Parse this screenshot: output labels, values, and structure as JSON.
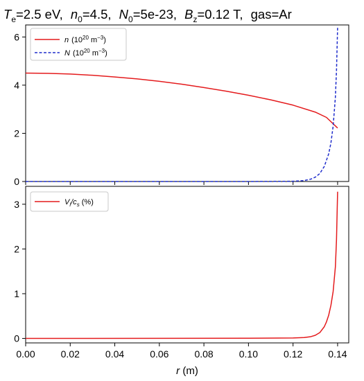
{
  "chart_data": [
    {
      "type": "line",
      "title_parts": {
        "te_sym": "T",
        "te_sub": "e",
        "te_val": "=2.5 eV,",
        "n0_sym": "n",
        "n0_sub": "0",
        "n0_val": "=4.5,",
        "N0_sym": "N",
        "N0_sub": "0",
        "N0_val": "=5e-23,",
        "bz_sym": "B",
        "bz_sub": "z",
        "bz_val": "=0.12 T,",
        "gas": "gas=Ar"
      },
      "xlabel": "",
      "ylabel": "",
      "xlim": [
        0.0,
        0.145
      ],
      "ylim": [
        0,
        6.5
      ],
      "yticks": [
        "0",
        "2",
        "4",
        "6"
      ],
      "yticks_values": [
        0,
        2,
        4,
        6
      ],
      "legend": "top-left",
      "series": [
        {
          "name_sym": "n",
          "name_unit": "(10",
          "name_exp": "20",
          "name_tail": " m",
          "name_tail_exp": "−3",
          "name_close": ")",
          "color": "#e41a1c",
          "style": "solid",
          "x": [
            0.0,
            0.01,
            0.02,
            0.03,
            0.04,
            0.05,
            0.06,
            0.07,
            0.08,
            0.09,
            0.1,
            0.11,
            0.12,
            0.13,
            0.135,
            0.14
          ],
          "y": [
            4.5,
            4.49,
            4.46,
            4.41,
            4.34,
            4.26,
            4.16,
            4.04,
            3.9,
            3.75,
            3.58,
            3.39,
            3.17,
            2.88,
            2.66,
            2.22
          ]
        },
        {
          "name_sym": "N",
          "name_unit": "(10",
          "name_exp": "20",
          "name_tail": " m",
          "name_tail_exp": "−3",
          "name_close": ")",
          "color": "#1f2dcc",
          "style": "dashed",
          "x": [
            0.0,
            0.1,
            0.12,
            0.125,
            0.128,
            0.13,
            0.132,
            0.134,
            0.136,
            0.137,
            0.138,
            0.139,
            0.1395,
            0.14
          ],
          "y": [
            0.0,
            0.0,
            0.01,
            0.04,
            0.1,
            0.18,
            0.33,
            0.62,
            1.15,
            1.6,
            2.3,
            3.5,
            4.6,
            6.4
          ]
        }
      ]
    },
    {
      "type": "line",
      "xlabel_sym": "r",
      "xlabel_unit": " (m)",
      "ylabel": "",
      "xlim": [
        0.0,
        0.145
      ],
      "ylim": [
        -0.1,
        3.4
      ],
      "xticks": [
        "0.00",
        "0.02",
        "0.04",
        "0.06",
        "0.08",
        "0.10",
        "0.12",
        "0.14"
      ],
      "xticks_values": [
        0.0,
        0.02,
        0.04,
        0.06,
        0.08,
        0.1,
        0.12,
        0.14
      ],
      "yticks": [
        "0",
        "1",
        "2",
        "3"
      ],
      "yticks_values": [
        0,
        1,
        2,
        3
      ],
      "legend": "top-left",
      "series": [
        {
          "name_sym": "V",
          "name_sub": "i",
          "name_mid": "/c",
          "name_sub2": "s",
          "name_tail": " (%)",
          "color": "#e41a1c",
          "style": "solid",
          "x": [
            0.0,
            0.1,
            0.12,
            0.125,
            0.128,
            0.13,
            0.132,
            0.134,
            0.135,
            0.136,
            0.137,
            0.138,
            0.139,
            0.1395,
            0.14
          ],
          "y": [
            0.0,
            0.005,
            0.01,
            0.02,
            0.04,
            0.07,
            0.13,
            0.26,
            0.37,
            0.52,
            0.74,
            1.05,
            1.6,
            2.2,
            3.28
          ]
        }
      ]
    }
  ]
}
